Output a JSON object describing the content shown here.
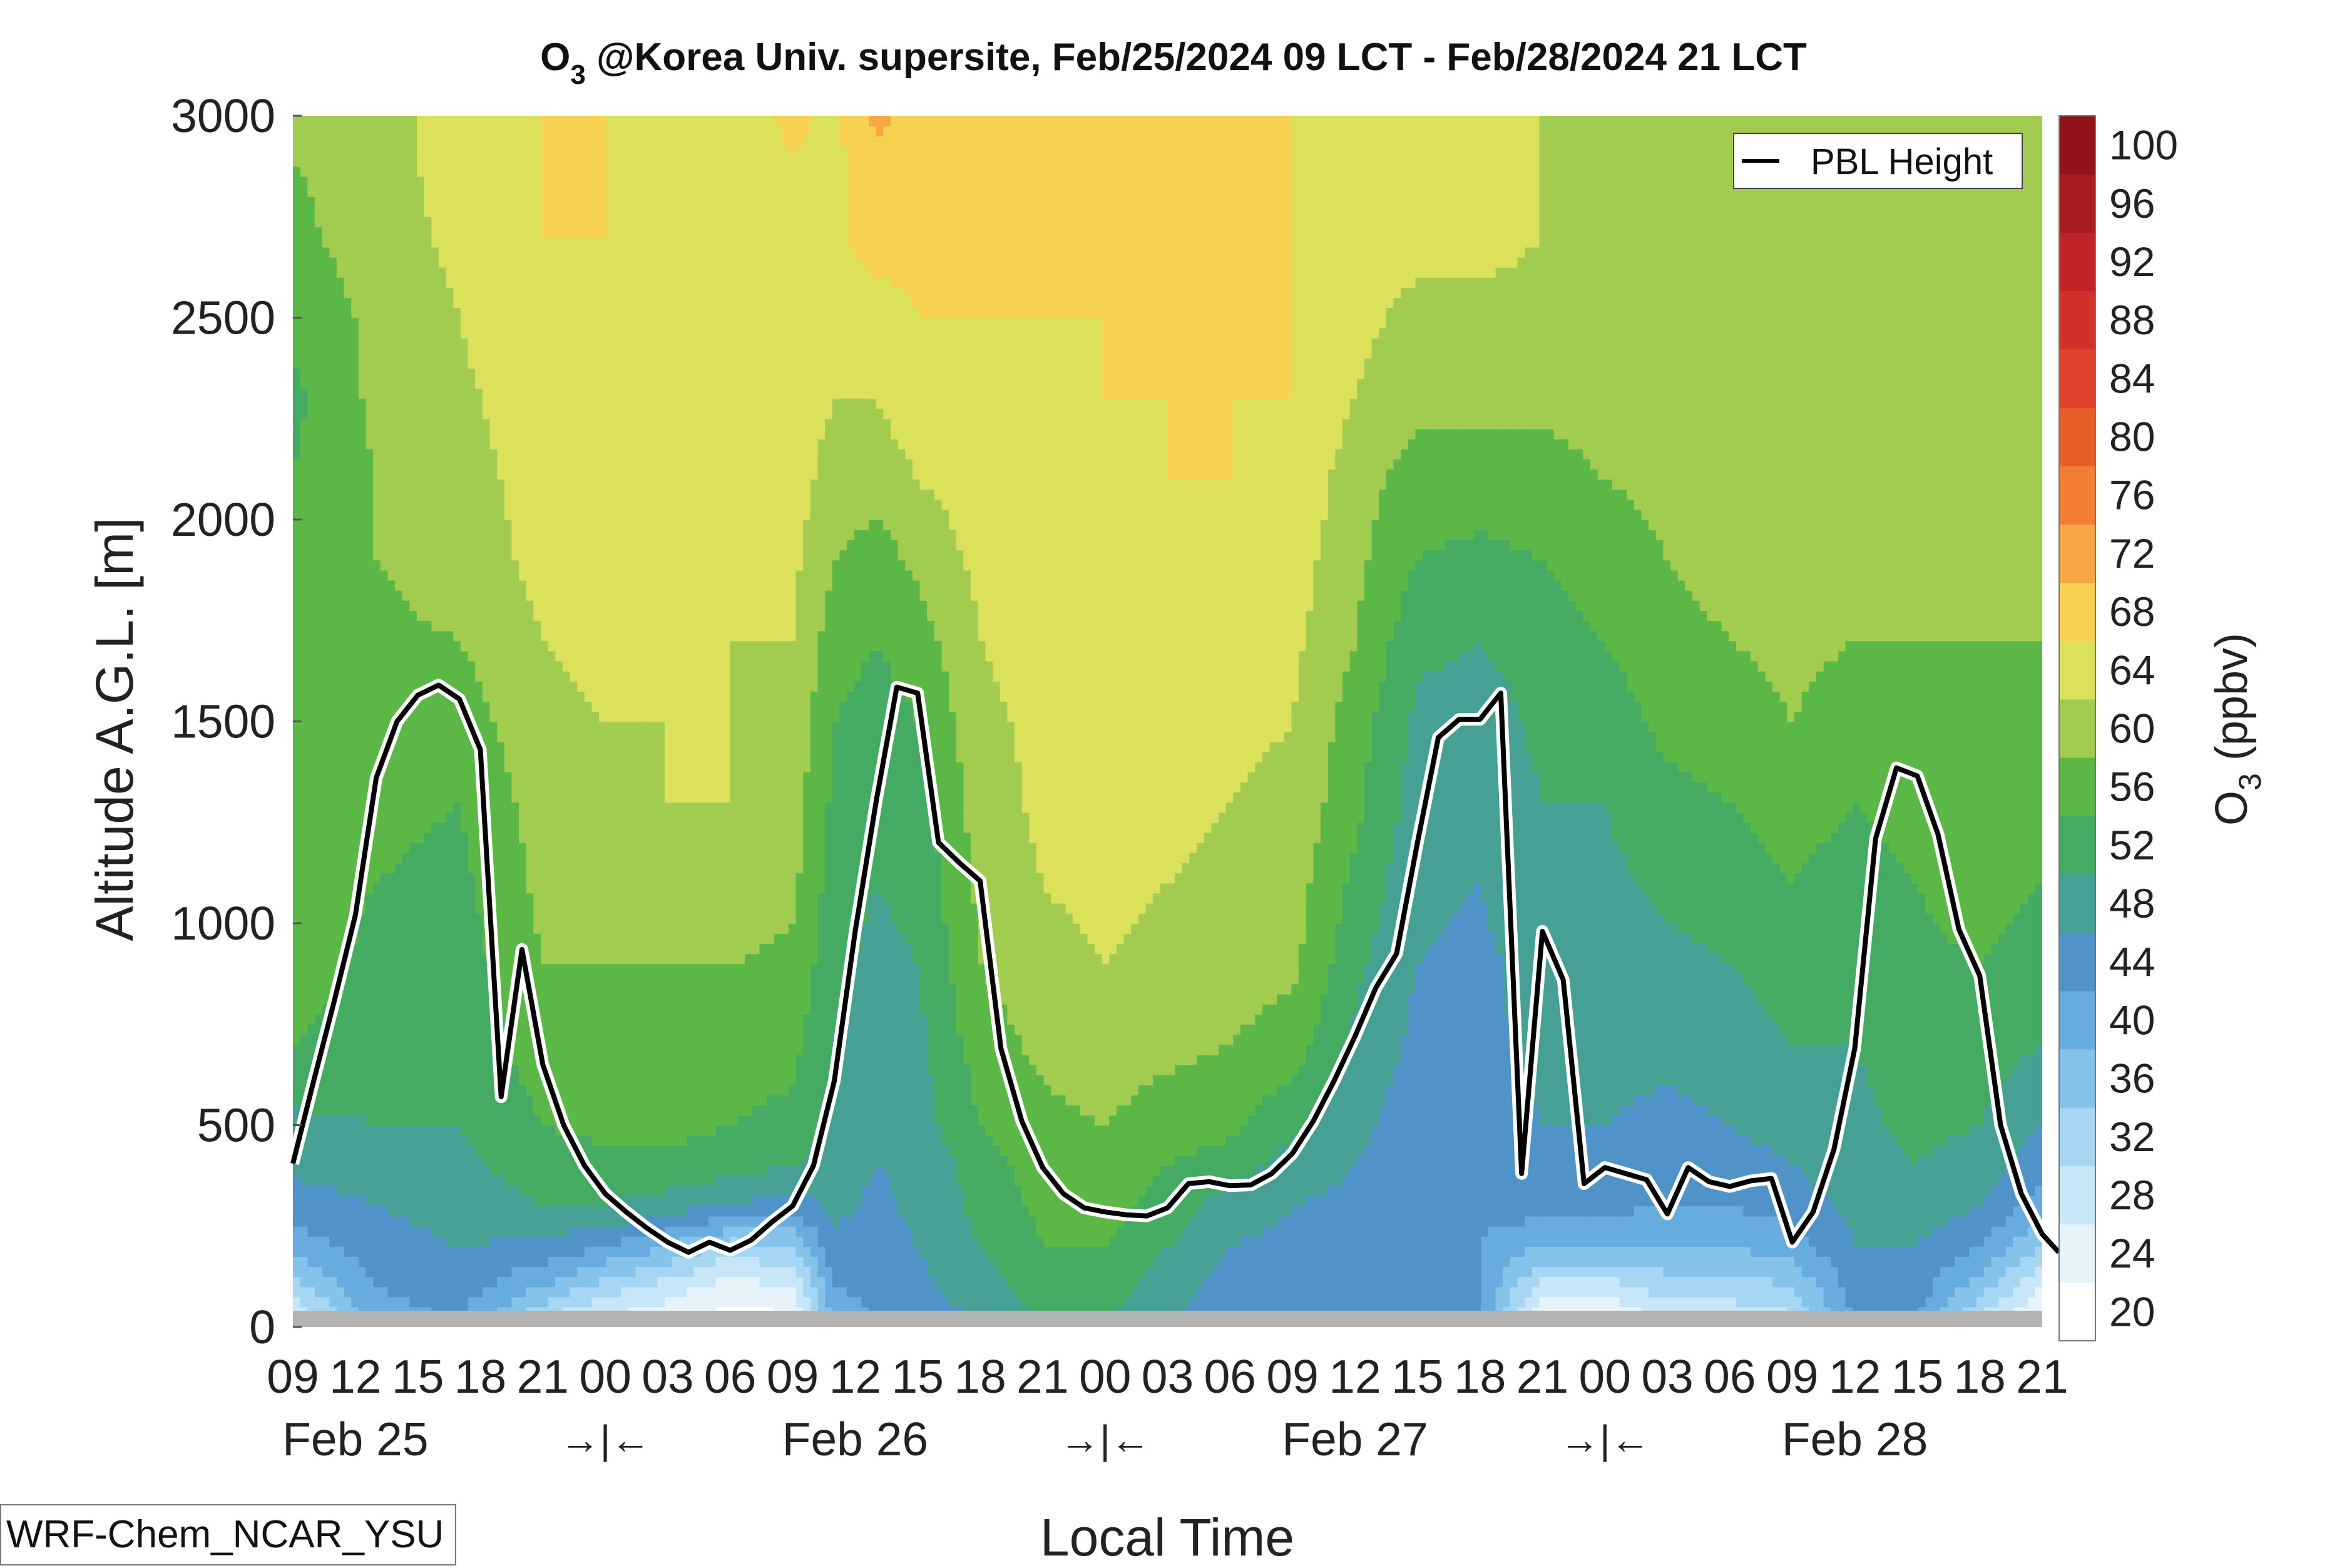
{
  "chart_data": {
    "type": "heatmap",
    "title": "O₃ @Korea Univ. supersite, Feb/25/2024 09 LCT - Feb/28/2024 21 LCT",
    "title_main": "O",
    "title_sub": "3",
    "title_rest": " @Korea Univ. supersite, Feb/25/2024 09 LCT - Feb/28/2024 21 LCT",
    "xlabel": "Local Time",
    "ylabel": "Altitude A.G.L. [m]",
    "colorbar_label_main": "O",
    "colorbar_label_sub": "3",
    "colorbar_label_rest": " (ppbv)",
    "ylim": [
      0,
      3000
    ],
    "yticks": [
      0,
      500,
      1000,
      1500,
      2000,
      2500,
      3000
    ],
    "xlim": [
      0,
      84
    ],
    "xticks": [
      {
        "x": 0,
        "label": "09"
      },
      {
        "x": 3,
        "label": "12"
      },
      {
        "x": 6,
        "label": "15"
      },
      {
        "x": 9,
        "label": "18"
      },
      {
        "x": 12,
        "label": "21"
      },
      {
        "x": 15,
        "label": "00"
      },
      {
        "x": 18,
        "label": "03"
      },
      {
        "x": 21,
        "label": "06"
      },
      {
        "x": 24,
        "label": "09"
      },
      {
        "x": 27,
        "label": "12"
      },
      {
        "x": 30,
        "label": "15"
      },
      {
        "x": 33,
        "label": "18"
      },
      {
        "x": 36,
        "label": "21"
      },
      {
        "x": 39,
        "label": "00"
      },
      {
        "x": 42,
        "label": "03"
      },
      {
        "x": 45,
        "label": "06"
      },
      {
        "x": 48,
        "label": "09"
      },
      {
        "x": 51,
        "label": "12"
      },
      {
        "x": 54,
        "label": "15"
      },
      {
        "x": 57,
        "label": "18"
      },
      {
        "x": 60,
        "label": "21"
      },
      {
        "x": 63,
        "label": "00"
      },
      {
        "x": 66,
        "label": "03"
      },
      {
        "x": 69,
        "label": "06"
      },
      {
        "x": 72,
        "label": "09"
      },
      {
        "x": 75,
        "label": "12"
      },
      {
        "x": 78,
        "label": "15"
      },
      {
        "x": 81,
        "label": "18"
      },
      {
        "x": 84,
        "label": "21"
      }
    ],
    "day_labels": [
      {
        "x": 3,
        "label": "Feb 25"
      },
      {
        "x": 27,
        "label": "Feb 26"
      },
      {
        "x": 51,
        "label": "Feb 27"
      },
      {
        "x": 75,
        "label": "Feb 28"
      }
    ],
    "midnight_markers": [
      {
        "x": 15,
        "label": "→|←"
      },
      {
        "x": 39,
        "label": "→|←"
      },
      {
        "x": 63,
        "label": "→|←"
      }
    ],
    "colorbar_levels": [
      20,
      24,
      28,
      32,
      36,
      40,
      44,
      48,
      52,
      56,
      60,
      64,
      68,
      72,
      76,
      80,
      84,
      88,
      92,
      96,
      100
    ],
    "colorbar_tick_labels": [
      "20",
      "24",
      "28",
      "32",
      "36",
      "40",
      "44",
      "48",
      "52",
      "56",
      "60",
      "64",
      "68",
      "72",
      "76",
      "80",
      "84",
      "88",
      "92",
      "96",
      "100"
    ],
    "colorbar_colors": [
      "#ffffff",
      "#e6f3fb",
      "#c7e6f7",
      "#a6d6f2",
      "#86c3eb",
      "#67acdf",
      "#4f93c8",
      "#46a194",
      "#45ab63",
      "#5bb847",
      "#a1cc4f",
      "#dbe15b",
      "#f8d150",
      "#f7a744",
      "#f27f31",
      "#e85c2a",
      "#e0422c",
      "#d2312b",
      "#bf2527",
      "#a81c20",
      "#8f1318"
    ],
    "o3_field": {
      "z": [
        0,
        100,
        200,
        300,
        400,
        500,
        700,
        900,
        1100,
        1300,
        1500,
        1700,
        1900,
        2100,
        2300,
        2500,
        2700,
        2900,
        3000
      ],
      "x": [
        0,
        4,
        8,
        12,
        15,
        18,
        21,
        24,
        26,
        28,
        30,
        33,
        36,
        39,
        42,
        45,
        48,
        51,
        54,
        57,
        60,
        63,
        66,
        69,
        72,
        75,
        78,
        81,
        84
      ],
      "values_by_time": [
        [
          26,
          34,
          42,
          46,
          49,
          51,
          56,
          58,
          58,
          58,
          58,
          57,
          56,
          56,
          55,
          57,
          59,
          60,
          60
        ],
        [
          42,
          44,
          46,
          48,
          50,
          52,
          54,
          55,
          56,
          57,
          58,
          59,
          60,
          60,
          61,
          61,
          62,
          62,
          62
        ],
        [
          44,
          46,
          48,
          50,
          51,
          52,
          53,
          54,
          55,
          56,
          58,
          60,
          62,
          62,
          63,
          64,
          65,
          66,
          66
        ],
        [
          30,
          40,
          47,
          52,
          54,
          56,
          58,
          60,
          61,
          62,
          63,
          64,
          65,
          66,
          67,
          68,
          68,
          68,
          68
        ],
        [
          26,
          34,
          44,
          52,
          55,
          57,
          59,
          60,
          62,
          63,
          64,
          65,
          65,
          66,
          67,
          67,
          68,
          68,
          68
        ],
        [
          24,
          30,
          40,
          50,
          55,
          57,
          59,
          60,
          63,
          64,
          64,
          65,
          66,
          66,
          66,
          66,
          66,
          66,
          66
        ],
        [
          22,
          26,
          34,
          48,
          54,
          56,
          58,
          60,
          63,
          64,
          64,
          64,
          65,
          65,
          65,
          65,
          65,
          65,
          66
        ],
        [
          22,
          28,
          36,
          46,
          52,
          55,
          57,
          59,
          61,
          62,
          63,
          64,
          65,
          66,
          67,
          68,
          68,
          68,
          69
        ],
        [
          40,
          44,
          47,
          49,
          50,
          51,
          52,
          53,
          54,
          55,
          56,
          58,
          60,
          62,
          64,
          66,
          67,
          67,
          67
        ],
        [
          44,
          45,
          46,
          47,
          48,
          49,
          50,
          51,
          52,
          53,
          54,
          56,
          58,
          62,
          64,
          66,
          70,
          71,
          73
        ],
        [
          46,
          47,
          48,
          49,
          49,
          50,
          51,
          52,
          53,
          54,
          56,
          58,
          61,
          64,
          66,
          68,
          69,
          70,
          70
        ],
        [
          48,
          50,
          52,
          53,
          54,
          56,
          58,
          60,
          61,
          62,
          63,
          64,
          65,
          66,
          67,
          68,
          68,
          68,
          68
        ],
        [
          52,
          54,
          56,
          57,
          58,
          59,
          61,
          63,
          64,
          65,
          65,
          66,
          66,
          67,
          67,
          68,
          68,
          68,
          68
        ],
        [
          52,
          54,
          56,
          58,
          59,
          60,
          62,
          64,
          65,
          65,
          66,
          66,
          67,
          67,
          68,
          68,
          68,
          68,
          68
        ],
        [
          48,
          50,
          52,
          54,
          56,
          58,
          61,
          63,
          64,
          65,
          66,
          67,
          67,
          68,
          68,
          68,
          68,
          68,
          68
        ],
        [
          45,
          46,
          48,
          50,
          54,
          57,
          60,
          62,
          63,
          64,
          65,
          66,
          67,
          68,
          68,
          68,
          68,
          68,
          68
        ],
        [
          45,
          46,
          47,
          48,
          50,
          53,
          58,
          61,
          62,
          63,
          64,
          65,
          66,
          67,
          68,
          68,
          68,
          68,
          68
        ],
        [
          44,
          45,
          46,
          47,
          48,
          49,
          51,
          53,
          55,
          57,
          58,
          60,
          61,
          62,
          64,
          65,
          66,
          66,
          66
        ],
        [
          44,
          44,
          45,
          45,
          46,
          46,
          47,
          48,
          49,
          50,
          51,
          53,
          56,
          58,
          61,
          63,
          65,
          65,
          65
        ],
        [
          44,
          44,
          44,
          45,
          45,
          46,
          47,
          47,
          48,
          49,
          50,
          52,
          55,
          58,
          61,
          63,
          65,
          65,
          65
        ],
        [
          22,
          30,
          40,
          46,
          47,
          48,
          49,
          50,
          51,
          52,
          53,
          54,
          56,
          58,
          61,
          63,
          64,
          64,
          64
        ],
        [
          22,
          30,
          40,
          45,
          47,
          48,
          49,
          50,
          51,
          52,
          54,
          56,
          58,
          60,
          62,
          63,
          63,
          63,
          63
        ],
        [
          28,
          34,
          40,
          44,
          46,
          47,
          49,
          51,
          53,
          55,
          57,
          59,
          60,
          61,
          62,
          62,
          62,
          63,
          63
        ],
        [
          28,
          34,
          40,
          44,
          46,
          48,
          50,
          52,
          54,
          56,
          58,
          60,
          61,
          61,
          62,
          62,
          62,
          63,
          63
        ],
        [
          30,
          36,
          42,
          46,
          48,
          50,
          52,
          54,
          56,
          58,
          60,
          61,
          62,
          62,
          62,
          62,
          62,
          63,
          63
        ],
        [
          44,
          46,
          48,
          49,
          50,
          51,
          52,
          53,
          54,
          56,
          58,
          60,
          61,
          62,
          62,
          63,
          63,
          63,
          63
        ],
        [
          44,
          46,
          48,
          50,
          52,
          53,
          54,
          55,
          56,
          58,
          59,
          60,
          61,
          61,
          62,
          62,
          62,
          62,
          62
        ],
        [
          30,
          38,
          44,
          48,
          50,
          52,
          54,
          56,
          58,
          59,
          60,
          60,
          61,
          61,
          62,
          62,
          62,
          62,
          62
        ],
        [
          22,
          28,
          36,
          42,
          46,
          48,
          52,
          54,
          56,
          58,
          59,
          60,
          60,
          61,
          61,
          62,
          62,
          62,
          62
        ]
      ]
    },
    "pbl_series": {
      "name": "PBL Height",
      "points": [
        [
          0,
          405
        ],
        [
          1,
          610
        ],
        [
          2,
          810
        ],
        [
          3,
          1020
        ],
        [
          4,
          1360
        ],
        [
          5,
          1500
        ],
        [
          6,
          1565
        ],
        [
          7,
          1590
        ],
        [
          8,
          1555
        ],
        [
          9,
          1430
        ],
        [
          10,
          570
        ],
        [
          11,
          935
        ],
        [
          12,
          650
        ],
        [
          13,
          500
        ],
        [
          14,
          400
        ],
        [
          15,
          330
        ],
        [
          16,
          285
        ],
        [
          17,
          245
        ],
        [
          18,
          210
        ],
        [
          19,
          185
        ],
        [
          20,
          210
        ],
        [
          21,
          190
        ],
        [
          22,
          215
        ],
        [
          23,
          260
        ],
        [
          24,
          300
        ],
        [
          25,
          400
        ],
        [
          26,
          610
        ],
        [
          27,
          980
        ],
        [
          28,
          1300
        ],
        [
          29,
          1585
        ],
        [
          30,
          1570
        ],
        [
          31,
          1200
        ],
        [
          32,
          1150
        ],
        [
          33,
          1105
        ],
        [
          34,
          690
        ],
        [
          35,
          510
        ],
        [
          36,
          395
        ],
        [
          37,
          330
        ],
        [
          38,
          295
        ],
        [
          39,
          285
        ],
        [
          40,
          278
        ],
        [
          41,
          275
        ],
        [
          42,
          295
        ],
        [
          43,
          355
        ],
        [
          44,
          360
        ],
        [
          45,
          350
        ],
        [
          46,
          352
        ],
        [
          47,
          380
        ],
        [
          48,
          430
        ],
        [
          49,
          510
        ],
        [
          50,
          610
        ],
        [
          51,
          720
        ],
        [
          52,
          840
        ],
        [
          53,
          925
        ],
        [
          54,
          1200
        ],
        [
          55,
          1460
        ],
        [
          56,
          1505
        ],
        [
          57,
          1505
        ],
        [
          58,
          1570
        ],
        [
          59,
          380
        ],
        [
          60,
          980
        ],
        [
          61,
          860
        ],
        [
          62,
          355
        ],
        [
          63,
          395
        ],
        [
          64,
          380
        ],
        [
          65,
          365
        ],
        [
          66,
          280
        ],
        [
          67,
          395
        ],
        [
          68,
          360
        ],
        [
          69,
          348
        ],
        [
          70,
          362
        ],
        [
          71,
          368
        ],
        [
          72,
          210
        ],
        [
          73,
          285
        ],
        [
          74,
          440
        ],
        [
          75,
          690
        ],
        [
          76,
          1210
        ],
        [
          77,
          1385
        ],
        [
          78,
          1365
        ],
        [
          79,
          1220
        ],
        [
          80,
          985
        ],
        [
          81,
          870
        ],
        [
          82,
          500
        ],
        [
          83,
          330
        ],
        [
          84,
          230
        ],
        [
          84.8,
          185
        ]
      ]
    },
    "legend": {
      "entries": [
        "PBL Height"
      ],
      "position": "top-right"
    },
    "ground_band": "present"
  },
  "annotation": {
    "model_name": "WRF-Chem_NCAR_YSU"
  }
}
